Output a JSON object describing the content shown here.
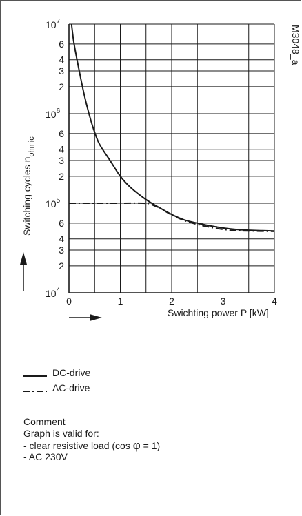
{
  "chart_data": {
    "type": "line",
    "x_axis": {
      "label": "Swichting power P [kW]",
      "range": [
        0,
        4
      ],
      "ticks": [
        "0",
        "1",
        "2",
        "3",
        "4"
      ]
    },
    "y_axis": {
      "label_main": "Switching cycles n",
      "label_sub": "ohmic",
      "scale": "log",
      "range": [
        10000,
        10000000
      ],
      "decade_labels": [
        {
          "value": 10000,
          "base": "10",
          "exp": "4"
        },
        {
          "value": 100000,
          "base": "10",
          "exp": "5"
        },
        {
          "value": 1000000,
          "base": "10",
          "exp": "6"
        },
        {
          "value": 10000000,
          "base": "10",
          "exp": "7"
        }
      ],
      "minor_labels": [
        {
          "value": 20000,
          "label": "2"
        },
        {
          "value": 30000,
          "label": "3"
        },
        {
          "value": 40000,
          "label": "4"
        },
        {
          "value": 60000,
          "label": "6"
        },
        {
          "value": 200000,
          "label": "2"
        },
        {
          "value": 300000,
          "label": "3"
        },
        {
          "value": 400000,
          "label": "4"
        },
        {
          "value": 600000,
          "label": "6"
        },
        {
          "value": 2000000,
          "label": "2"
        },
        {
          "value": 3000000,
          "label": "3"
        },
        {
          "value": 4000000,
          "label": "4"
        },
        {
          "value": 6000000,
          "label": "6"
        }
      ]
    },
    "series": [
      {
        "name": "DC-drive",
        "style": "solid",
        "points": [
          [
            0.05,
            10000000
          ],
          [
            0.1,
            6000000
          ],
          [
            0.2,
            3000000
          ],
          [
            0.3,
            1600000
          ],
          [
            0.4,
            950000
          ],
          [
            0.5,
            620000
          ],
          [
            0.6,
            450000
          ],
          [
            0.8,
            300000
          ],
          [
            1.0,
            200000
          ],
          [
            1.2,
            150000
          ],
          [
            1.5,
            110000
          ],
          [
            1.75,
            90000
          ],
          [
            2.0,
            75000
          ],
          [
            2.25,
            65000
          ],
          [
            2.5,
            60000
          ],
          [
            2.75,
            56000
          ],
          [
            3.0,
            53000
          ],
          [
            3.25,
            51000
          ],
          [
            3.5,
            50000
          ],
          [
            4.0,
            49000
          ]
        ]
      },
      {
        "name": "AC-drive",
        "style": "dashdot",
        "points": [
          [
            0,
            100000
          ],
          [
            1.0,
            100000
          ],
          [
            1.45,
            100000
          ],
          [
            1.6,
            97000
          ],
          [
            1.8,
            86000
          ],
          [
            2.0,
            74000
          ],
          [
            2.25,
            64000
          ],
          [
            2.5,
            58000
          ],
          [
            2.75,
            54000
          ],
          [
            3.0,
            51000
          ],
          [
            3.25,
            49500
          ],
          [
            3.5,
            49000
          ],
          [
            4.0,
            48500
          ]
        ]
      }
    ],
    "grid": true,
    "annotation": "M3048_a"
  },
  "legend": {
    "dc_label": "DC-drive",
    "ac_label": "AC-drive"
  },
  "comment": {
    "title": "Comment",
    "line1": "Graph is valid for:",
    "line2_pre": "- clear resistive load (cos ",
    "line2_symbol": "φ",
    "line2_post": " = 1)",
    "line3": "- AC 230V"
  }
}
